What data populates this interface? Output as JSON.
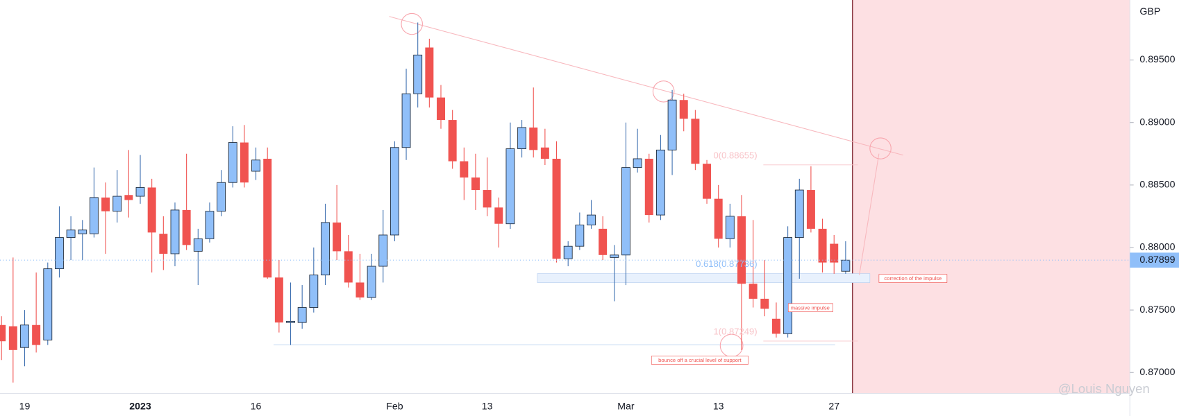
{
  "chart_data": {
    "type": "candlestick",
    "currency_label": "GBP",
    "watermark": "@Louis Nguyen",
    "categories": [
      null,
      null,
      "19",
      null,
      null,
      null,
      null,
      null,
      null,
      null,
      null,
      null,
      "2023",
      null,
      null,
      null,
      null,
      null,
      null,
      null,
      null,
      null,
      "16",
      null,
      null,
      null,
      null,
      null,
      null,
      null,
      null,
      null,
      null,
      null,
      "Feb",
      null,
      null,
      null,
      null,
      null,
      null,
      null,
      "13",
      null,
      null,
      null,
      null,
      null,
      null,
      null,
      null,
      null,
      null,
      null,
      "Mar",
      null,
      null,
      null,
      null,
      null,
      null,
      null,
      "13",
      null,
      null,
      null,
      null,
      null,
      null,
      null,
      null,
      null,
      "27",
      null
    ],
    "open": [
      0.8738,
      0.8737,
      0.872,
      0.8738,
      0.8726,
      0.8783,
      0.8808,
      0.8811,
      0.8811,
      0.884,
      0.8829,
      0.8842,
      0.8841,
      0.8848,
      0.8811,
      0.8795,
      0.883,
      0.8797,
      0.8807,
      0.8829,
      0.8852,
      0.8884,
      0.8861,
      0.8871,
      0.8776,
      0.874,
      0.874,
      0.8752,
      0.8778,
      0.882,
      0.8797,
      0.8772,
      0.876,
      0.8785,
      0.881,
      0.888,
      0.8923,
      0.896,
      0.892,
      0.8902,
      0.8869,
      0.8856,
      0.8846,
      0.8832,
      0.8819,
      0.8879,
      0.8896,
      0.888,
      0.8871,
      0.8791,
      0.8801,
      0.8818,
      0.8815,
      0.8792,
      0.8794,
      0.8864,
      0.8871,
      0.8826,
      0.8878,
      0.8918,
      0.8903,
      0.8867,
      0.8839,
      0.8807,
      0.8825,
      0.8771,
      0.8759,
      0.8743,
      0.8731,
      0.8808,
      0.8846,
      0.8815,
      0.8803,
      0.8781
    ],
    "high": [
      0.8745,
      0.8792,
      0.875,
      0.878,
      0.8788,
      0.8833,
      0.8825,
      0.8822,
      0.8864,
      0.8852,
      0.8862,
      0.8878,
      0.8874,
      0.8855,
      0.8825,
      0.8836,
      0.8875,
      0.8815,
      0.8836,
      0.8862,
      0.8897,
      0.8898,
      0.888,
      0.888,
      0.879,
      0.8772,
      0.877,
      0.88,
      0.8835,
      0.885,
      0.881,
      0.8795,
      0.8795,
      0.883,
      0.8885,
      0.8943,
      0.898,
      0.8967,
      0.893,
      0.891,
      0.888,
      0.8875,
      0.8872,
      0.884,
      0.89,
      0.8902,
      0.8928,
      0.8895,
      0.8885,
      0.8805,
      0.8828,
      0.8838,
      0.8825,
      0.8802,
      0.89,
      0.8895,
      0.8875,
      0.889,
      0.8926,
      0.8923,
      0.891,
      0.887,
      0.885,
      0.8835,
      0.8842,
      0.8822,
      0.879,
      0.8756,
      0.8817,
      0.8855,
      0.8865,
      0.8823,
      0.881,
      0.8805
    ],
    "low": [
      0.871,
      0.8692,
      0.8705,
      0.8716,
      0.8722,
      0.8776,
      0.879,
      0.879,
      0.8808,
      0.8795,
      0.882,
      0.8824,
      0.8835,
      0.878,
      0.8782,
      0.8785,
      0.8798,
      0.877,
      0.8804,
      0.8825,
      0.8848,
      0.8848,
      0.8854,
      0.8775,
      0.8732,
      0.8722,
      0.8735,
      0.8748,
      0.877,
      0.879,
      0.8768,
      0.8758,
      0.8758,
      0.8772,
      0.8805,
      0.887,
      0.8912,
      0.8912,
      0.8895,
      0.8863,
      0.8838,
      0.883,
      0.8825,
      0.88,
      0.8815,
      0.8872,
      0.8872,
      0.8866,
      0.8788,
      0.8785,
      0.8798,
      0.8815,
      0.879,
      0.8757,
      0.877,
      0.886,
      0.882,
      0.8822,
      0.8858,
      0.8893,
      0.8862,
      0.8835,
      0.88,
      0.88,
      0.8718,
      0.8752,
      0.8745,
      0.8728,
      0.8728,
      0.8775,
      0.8812,
      0.878,
      0.8779,
      0.8779
    ],
    "close": [
      0.8725,
      0.8718,
      0.8738,
      0.8722,
      0.8783,
      0.8808,
      0.8814,
      0.8814,
      0.884,
      0.8829,
      0.8841,
      0.8838,
      0.8848,
      0.8812,
      0.8795,
      0.883,
      0.8802,
      0.8807,
      0.8829,
      0.8852,
      0.8884,
      0.8852,
      0.887,
      0.8776,
      0.874,
      0.8741,
      0.8752,
      0.8778,
      0.882,
      0.8797,
      0.8772,
      0.876,
      0.8785,
      0.881,
      0.888,
      0.8923,
      0.8954,
      0.892,
      0.8902,
      0.8869,
      0.8856,
      0.8846,
      0.8832,
      0.8819,
      0.8879,
      0.8896,
      0.8878,
      0.8871,
      0.8791,
      0.8801,
      0.8818,
      0.8826,
      0.8794,
      0.8794,
      0.8864,
      0.8871,
      0.8826,
      0.8878,
      0.8918,
      0.8903,
      0.8867,
      0.8839,
      0.8807,
      0.8825,
      0.8771,
      0.8759,
      0.8751,
      0.8731,
      0.8808,
      0.8846,
      0.8815,
      0.8788,
      0.8788,
      0.87899
    ],
    "up_color": "#90bff9",
    "down_color": "#f05350",
    "last_price": 0.87899,
    "ylim": [
      0.86832,
      0.8998
    ],
    "yticks": [
      {
        "value": 0.87,
        "label": "0.87000"
      },
      {
        "value": 0.875,
        "label": "0.87500"
      },
      {
        "value": 0.88,
        "label": "0.88000"
      },
      {
        "value": 0.885,
        "label": "0.88500"
      },
      {
        "value": 0.89,
        "label": "0.89000"
      },
      {
        "value": 0.895,
        "label": "0.89500"
      }
    ],
    "fib_labels": [
      "0(0.88655)",
      "0.618(0.87736)",
      "1(0.87249)"
    ],
    "annotations": [
      "massive impulse",
      "correction of the impulse",
      "bounce off a crucial level of support"
    ]
  }
}
